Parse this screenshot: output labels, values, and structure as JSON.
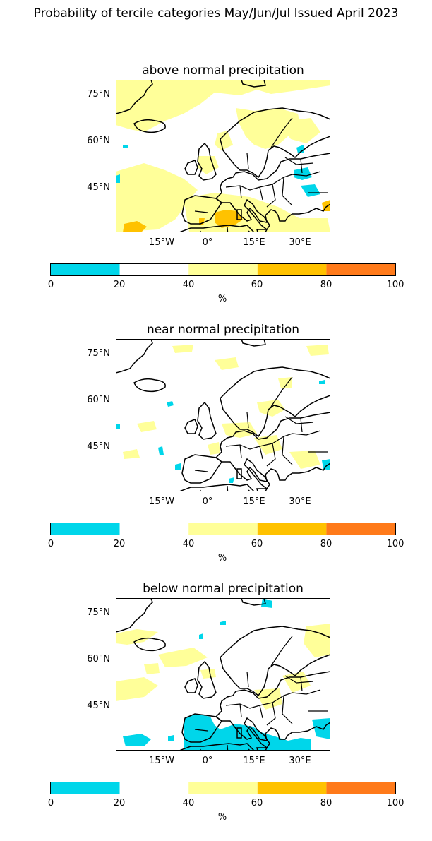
{
  "figure": {
    "title": "Probability of tercile categories May/Jun/Jul Issued April 2023"
  },
  "colors": {
    "cat_0_20": "#00d6ea",
    "cat_20_40": "#ffffff",
    "cat_40_60": "#ffff99",
    "cat_60_80": "#ffc200",
    "cat_80_100": "#ff7a1a",
    "land_outline": "#000000"
  },
  "axes": {
    "lat_labels": [
      "75°N",
      "60°N",
      "45°N"
    ],
    "lon_labels": [
      "15°W",
      "0°",
      "15°E",
      "30°E"
    ]
  },
  "colorbar": {
    "ticks": [
      "0",
      "20",
      "40",
      "60",
      "80",
      "100"
    ],
    "unit": "%"
  },
  "panels": [
    {
      "title": "above normal precipitation",
      "dominant_category": "40-60%",
      "notable_regions": [
        "North Atlantic",
        "Scandinavia",
        "Iberia",
        "Mediterranean (60-80%)"
      ],
      "low_regions": [
        "Eastern Europe (0-20%)"
      ]
    },
    {
      "title": "near normal precipitation",
      "dominant_category": "20-40%",
      "notable_regions": [
        "Central Europe",
        "Baltic"
      ],
      "low_regions": [
        "scattered patches (0-20%)"
      ]
    },
    {
      "title": "below normal precipitation",
      "dominant_category": "20-40%",
      "notable_regions": [
        "North Atlantic",
        "Eastern Europe"
      ],
      "low_regions": [
        "Mediterranean and North Africa (0-20%)"
      ]
    }
  ]
}
